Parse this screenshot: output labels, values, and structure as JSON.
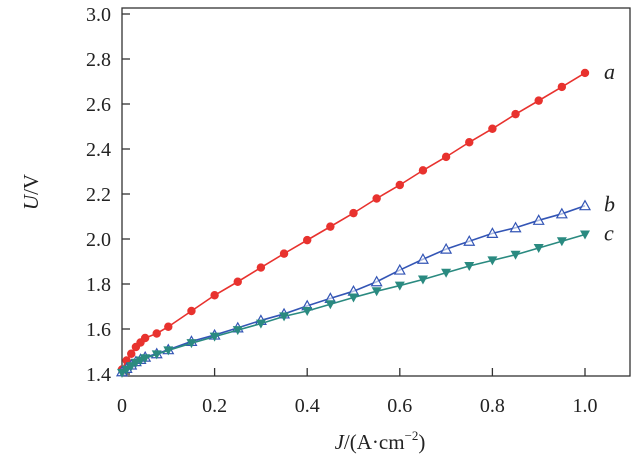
{
  "chart_data": {
    "type": "line",
    "title": "",
    "xlabel": {
      "var": "J",
      "unit": "/(A·cm",
      "exp": "−2",
      "close": ")"
    },
    "ylabel": {
      "var": "U",
      "unit": "/V"
    },
    "xlim": [
      0,
      1.1
    ],
    "ylim": [
      1.4,
      3.0
    ],
    "xticks": [
      "0",
      "0.2",
      "0.4",
      "0.6",
      "0.8",
      "1.0"
    ],
    "xtick_values": [
      0,
      0.2,
      0.4,
      0.6,
      0.8,
      1.0
    ],
    "yticks": [
      "1.4",
      "1.6",
      "1.8",
      "2.0",
      "2.2",
      "2.4",
      "2.6",
      "2.8",
      "3.0"
    ],
    "ytick_values": [
      1.4,
      1.6,
      1.8,
      2.0,
      2.2,
      2.4,
      2.6,
      2.8,
      3.0
    ],
    "grid": false,
    "x": [
      0,
      0.01,
      0.02,
      0.03,
      0.04,
      0.05,
      0.075,
      0.1,
      0.15,
      0.2,
      0.25,
      0.3,
      0.35,
      0.4,
      0.45,
      0.5,
      0.55,
      0.6,
      0.65,
      0.7,
      0.75,
      0.8,
      0.85,
      0.9,
      0.95,
      1.0
    ],
    "series": [
      {
        "name": "a",
        "color": "#e8322e",
        "marker": "circle",
        "values": [
          1.42,
          1.46,
          1.49,
          1.52,
          1.54,
          1.56,
          1.58,
          1.61,
          1.68,
          1.75,
          1.81,
          1.873,
          1.935,
          1.995,
          2.055,
          2.115,
          2.18,
          2.24,
          2.305,
          2.365,
          2.43,
          2.49,
          2.555,
          2.615,
          2.676,
          2.738
        ]
      },
      {
        "name": "b",
        "color": "#3355b5",
        "marker": "triangle-up-open",
        "values": [
          1.41,
          1.425,
          1.44,
          1.455,
          1.465,
          1.475,
          1.49,
          1.508,
          1.545,
          1.573,
          1.605,
          1.638,
          1.667,
          1.703,
          1.736,
          1.768,
          1.81,
          1.862,
          1.91,
          1.955,
          1.99,
          2.025,
          2.05,
          2.083,
          2.112,
          2.148
        ]
      },
      {
        "name": "c",
        "color": "#2a8a80",
        "marker": "triangle-down-filled",
        "values": [
          1.405,
          1.42,
          1.435,
          1.45,
          1.46,
          1.47,
          1.487,
          1.505,
          1.537,
          1.566,
          1.595,
          1.624,
          1.656,
          1.68,
          1.71,
          1.74,
          1.768,
          1.793,
          1.82,
          1.85,
          1.88,
          1.905,
          1.93,
          1.96,
          1.99,
          2.02
        ]
      }
    ]
  }
}
